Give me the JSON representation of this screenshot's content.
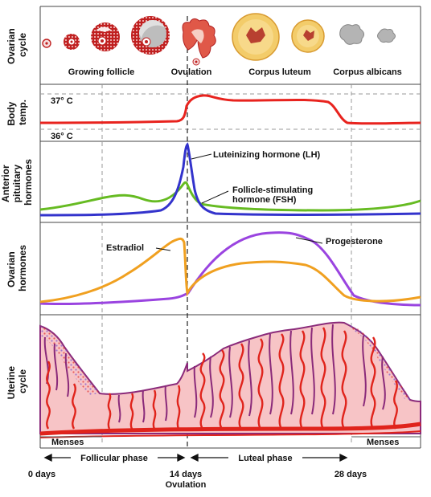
{
  "rows": {
    "ovarian_cycle": [
      "Ovarian",
      "cycle"
    ],
    "body_temp": [
      "Body",
      "temp."
    ],
    "pituitary": [
      "Anterior",
      "pituitary",
      "hormones"
    ],
    "ovarian_hormones": [
      "Ovarian",
      "hormones"
    ],
    "uterine": [
      "Uterine",
      "cycle"
    ]
  },
  "ovary_labels": {
    "growing": "Growing follicle",
    "ovulation": "Ovulation",
    "luteum": "Corpus luteum",
    "albicans": "Corpus albicans"
  },
  "temperature": {
    "high": "37° C",
    "low": "36° C"
  },
  "hormone_labels": {
    "lh": "Luteinizing hormone (LH)",
    "fsh_1": "Follicle-stimulating",
    "fsh_2": "hormone (FSH)",
    "estradiol": "Estradiol",
    "progesterone": "Progesterone"
  },
  "phases": {
    "menses_left": "Menses",
    "menses_right": "Menses",
    "follicular": "Follicular phase",
    "luteal": "Luteal phase"
  },
  "days": {
    "d0": "0 days",
    "d14": "14 days",
    "d14_sub": "Ovulation",
    "d28": "28 days"
  },
  "colors": {
    "temperature": "#e8231e",
    "lh": "#3333cc",
    "fsh": "#66bb22",
    "estradiol": "#f0a020",
    "progesterone": "#9a44e0",
    "endometrium": "#f7c4c6",
    "endometrium_edge": "#8a2a7a",
    "artery": "#e0241c"
  }
}
